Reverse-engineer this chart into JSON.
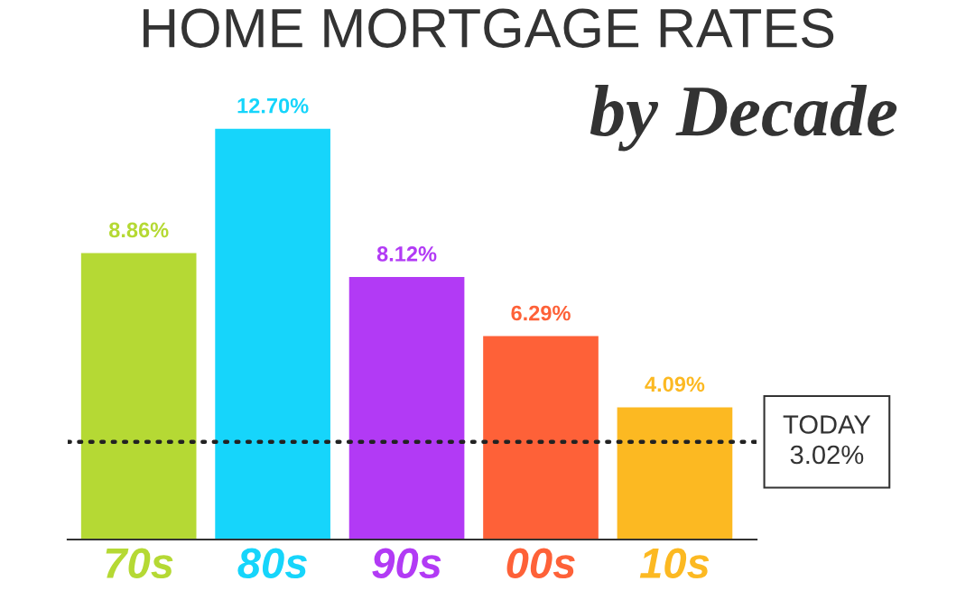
{
  "chart_data": {
    "type": "bar",
    "title": "HOME MORTGAGE RATES",
    "subtitle": "by Decade",
    "categories": [
      "70s",
      "80s",
      "90s",
      "00s",
      "10s"
    ],
    "values": [
      8.86,
      12.7,
      8.12,
      6.29,
      4.09
    ],
    "colors": [
      "#b5d934",
      "#16d5fb",
      "#b23af5",
      "#fe6138",
      "#fcb922"
    ],
    "value_labels": [
      "8.86%",
      "12.70%",
      "8.12%",
      "6.29%",
      "4.09%"
    ],
    "ref_lines": [
      {
        "axis": "y",
        "value": 3.02,
        "label": "TODAY\n3.02%",
        "color": "#222222",
        "line_style": "dotted"
      }
    ],
    "tick_labels": "x"
  }
}
